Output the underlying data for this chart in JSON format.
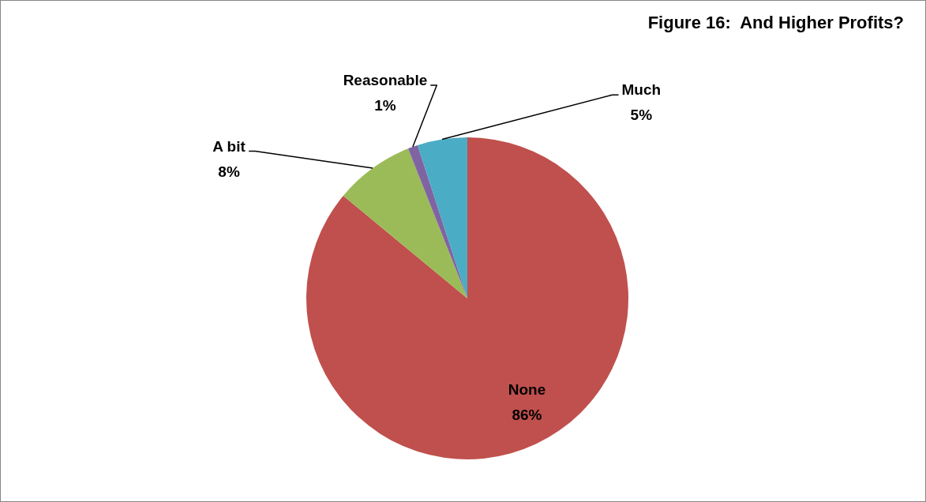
{
  "chart_data": {
    "type": "pie",
    "title": "Figure 16:  And Higher Profits?",
    "categories": [
      "None",
      "A bit",
      "Reasonable",
      "Much"
    ],
    "values": [
      86,
      8,
      1,
      5
    ],
    "colors": [
      "#c0504d",
      "#9bbb59",
      "#8064a2",
      "#4bacc6"
    ],
    "value_labels": [
      "86%",
      "8%",
      "1%",
      "5%"
    ],
    "legend": false
  }
}
